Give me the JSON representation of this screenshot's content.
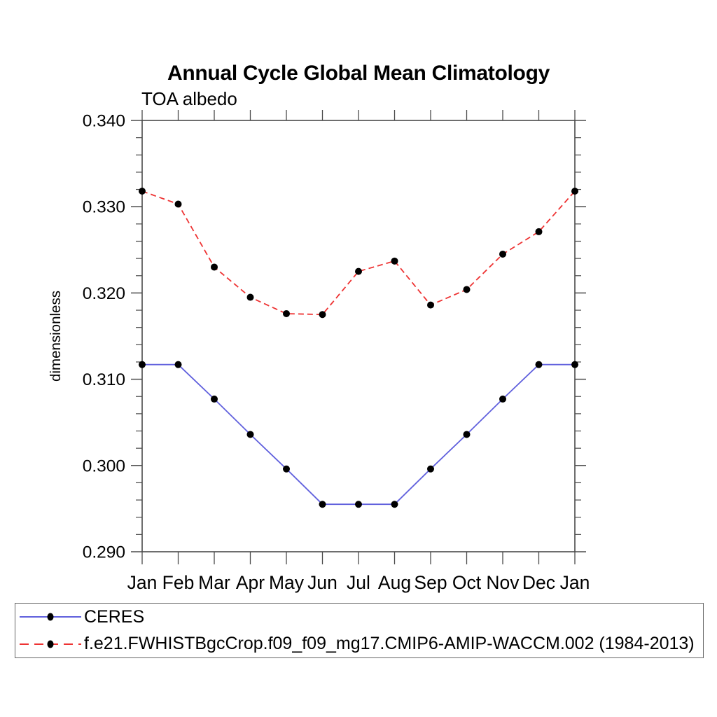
{
  "title": "Annual Cycle Global Mean Climatology",
  "subtitle": "TOA albedo",
  "chart_data": {
    "type": "line",
    "x_categories": [
      "Jan",
      "Feb",
      "Mar",
      "Apr",
      "May",
      "Jun",
      "Jul",
      "Aug",
      "Sep",
      "Oct",
      "Nov",
      "Dec",
      "Jan"
    ],
    "series": [
      {
        "name": "CERES",
        "color": "#6060dd",
        "line_style": "solid",
        "marker": "filled-black-circle",
        "values": [
          0.3117,
          0.3117,
          0.3077,
          0.3036,
          0.2996,
          0.2955,
          0.2955,
          0.2955,
          0.2996,
          0.3036,
          0.3077,
          0.3117,
          0.3117
        ]
      },
      {
        "name": "f.e21.FWHISTBgcCrop.f09_f09_mg17.CMIP6-AMIP-WACCM.002 (1984-2013)",
        "color": "#ee3333",
        "line_style": "dashed",
        "marker": "filled-black-circle",
        "values": [
          0.3318,
          0.3303,
          0.323,
          0.3195,
          0.3176,
          0.3175,
          0.3225,
          0.3237,
          0.3186,
          0.3204,
          0.3245,
          0.3271,
          0.3318
        ]
      }
    ],
    "xlabel": "",
    "ylabel": "dimensionless",
    "ylim": [
      0.29,
      0.34
    ],
    "y_major_step": 0.01,
    "y_minor_step": 0.002,
    "y_tick_labels": [
      "0.290",
      "0.300",
      "0.310",
      "0.320",
      "0.330",
      "0.340"
    ],
    "grid": false,
    "tick_direction": "outward",
    "legend_position": "bottom-box"
  },
  "legend": {
    "items": [
      {
        "label": "CERES"
      },
      {
        "label": "f.e21.FWHISTBgcCrop.f09_f09_mg17.CMIP6-AMIP-WACCM.002 (1984-2013)"
      }
    ]
  }
}
